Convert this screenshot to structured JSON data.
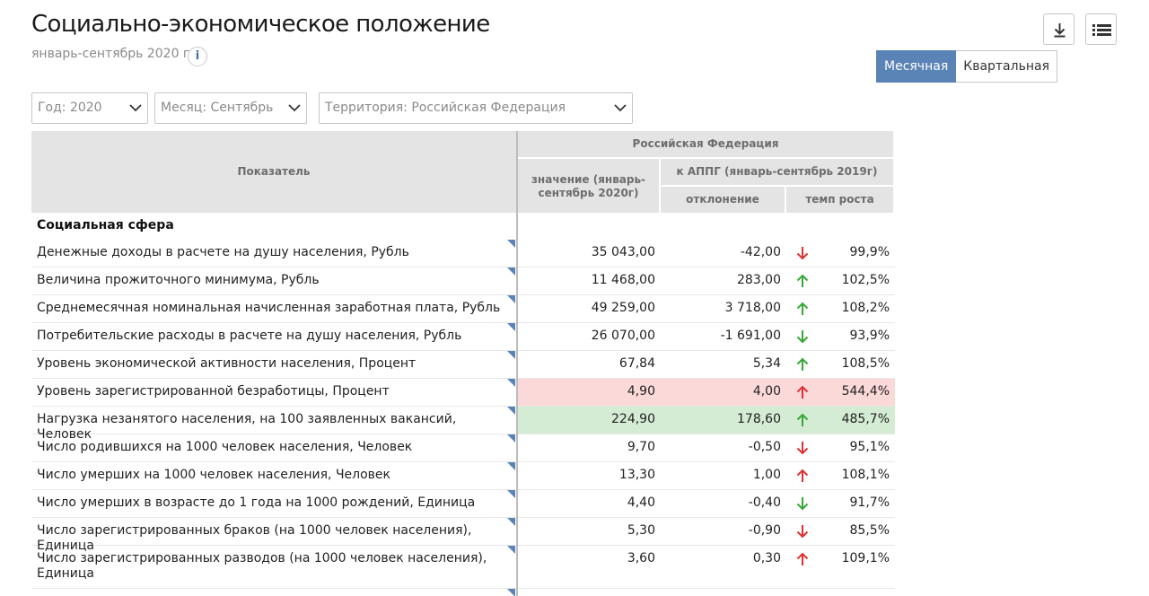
{
  "header": {
    "title": "Социально-экономическое положение",
    "subtitle": "январь-сентябрь 2020 г.",
    "info_label": "i",
    "download_icon": "download-icon",
    "list_icon": "list-icon"
  },
  "period_toggle": {
    "options": [
      "Месячная",
      "Квартальная"
    ],
    "selected": "Месячная"
  },
  "filters": {
    "year": "Год: 2020",
    "month": "Месяц: Сентябрь",
    "territory": "Территория: Российская  Федерация"
  },
  "table": {
    "headers": {
      "indicator": "Показатель",
      "region": "Российская Федерация",
      "value": "значение (январь-сентябрь 2020г)",
      "appg": "к АППГ (январь-сентябрь 2019г)",
      "deviation": "отклонение",
      "growth": "темп роста"
    },
    "section": "Социальная сфера",
    "colors": {
      "up": "#36a836",
      "down": "#e03030",
      "highlight_red": "#fcd9d9",
      "highlight_green": "#d4ebd4",
      "accent": "#5b84b6"
    },
    "rows": [
      {
        "name": "Денежные доходы в расчете на душу населения, Рубль",
        "value": "35 043,00",
        "deviation": "-42,00",
        "arrow": "down",
        "arrow_color": "red",
        "rate": "99,9%",
        "highlight": ""
      },
      {
        "name": "Величина прожиточного минимума, Рубль",
        "value": "11 468,00",
        "deviation": "283,00",
        "arrow": "up",
        "arrow_color": "green",
        "rate": "102,5%",
        "highlight": ""
      },
      {
        "name": "Среднемесячная номинальная начисленная заработная плата, Рубль",
        "value": "49 259,00",
        "deviation": "3 718,00",
        "arrow": "up",
        "arrow_color": "green",
        "rate": "108,2%",
        "highlight": ""
      },
      {
        "name": "Потребительские расходы в расчете на душу населения, Рубль",
        "value": "26 070,00",
        "deviation": "-1 691,00",
        "arrow": "down",
        "arrow_color": "green",
        "rate": "93,9%",
        "highlight": ""
      },
      {
        "name": "Уровень экономической активности населения, Процент",
        "value": "67,84",
        "deviation": "5,34",
        "arrow": "up",
        "arrow_color": "green",
        "rate": "108,5%",
        "highlight": ""
      },
      {
        "name": "Уровень зарегистрированной безработицы, Процент",
        "value": "4,90",
        "deviation": "4,00",
        "arrow": "up",
        "arrow_color": "red",
        "rate": "544,4%",
        "highlight": "red"
      },
      {
        "name": "Нагрузка незанятого населения, на 100 заявленных вакансий, Человек",
        "value": "224,90",
        "deviation": "178,60",
        "arrow": "up",
        "arrow_color": "green",
        "rate": "485,7%",
        "highlight": "green"
      },
      {
        "name": "Число родившихся на 1000 человек населения, Человек",
        "value": "9,70",
        "deviation": "-0,50",
        "arrow": "down",
        "arrow_color": "red",
        "rate": "95,1%",
        "highlight": ""
      },
      {
        "name": "Число умерших на 1000 человек населения, Человек",
        "value": "13,30",
        "deviation": "1,00",
        "arrow": "up",
        "arrow_color": "red",
        "rate": "108,1%",
        "highlight": ""
      },
      {
        "name": "Число умерших в возрасте до 1 года на 1000 рождений, Единица",
        "value": "4,40",
        "deviation": "-0,40",
        "arrow": "down",
        "arrow_color": "green",
        "rate": "91,7%",
        "highlight": ""
      },
      {
        "name": "Число зарегистрированных браков (на 1000 человек населения), Единица",
        "value": "5,30",
        "deviation": "-0,90",
        "arrow": "down",
        "arrow_color": "red",
        "rate": "85,5%",
        "highlight": ""
      },
      {
        "name": "Число зарегистрированных разводов (на 1000 человек населения), Единица",
        "value": "3,60",
        "deviation": "0,30",
        "arrow": "up",
        "arrow_color": "red",
        "rate": "109,1%",
        "highlight": ""
      }
    ]
  }
}
